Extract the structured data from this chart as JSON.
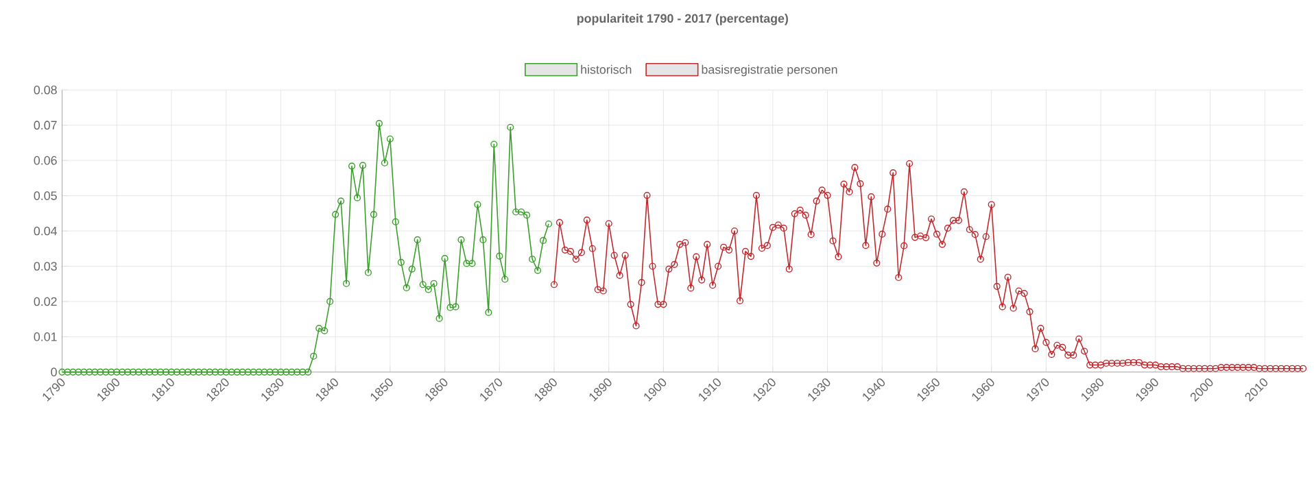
{
  "chart_data": {
    "type": "line",
    "title": "populariteit 1790 - 2017 (percentage)",
    "xlim": [
      1790,
      2017
    ],
    "xticks": [
      1790,
      1800,
      1810,
      1820,
      1830,
      1840,
      1850,
      1860,
      1870,
      1880,
      1890,
      1900,
      1910,
      1920,
      1930,
      1940,
      1950,
      1960,
      1970,
      1980,
      1990,
      2000,
      2010
    ],
    "ylim": [
      0,
      0.08
    ],
    "yticks": [
      0,
      0.01,
      0.02,
      0.03,
      0.04,
      0.05,
      0.06,
      0.07,
      0.08
    ],
    "grid": true,
    "legend": "top",
    "marker": "circle",
    "line_style": "solid",
    "series": [
      {
        "name": "historisch",
        "color": "#3a9e2a",
        "x": [
          1790,
          1791,
          1792,
          1793,
          1794,
          1795,
          1796,
          1797,
          1798,
          1799,
          1800,
          1801,
          1802,
          1803,
          1804,
          1805,
          1806,
          1807,
          1808,
          1809,
          1810,
          1811,
          1812,
          1813,
          1814,
          1815,
          1816,
          1817,
          1818,
          1819,
          1820,
          1821,
          1822,
          1823,
          1824,
          1825,
          1826,
          1827,
          1828,
          1829,
          1830,
          1831,
          1832,
          1833,
          1834,
          1835,
          1836,
          1837,
          1838,
          1839,
          1840,
          1841,
          1842,
          1843,
          1844,
          1845,
          1846,
          1847,
          1848,
          1849,
          1850,
          1851,
          1852,
          1853,
          1854,
          1855,
          1856,
          1857,
          1858,
          1859,
          1860,
          1861,
          1862,
          1863,
          1864,
          1865,
          1866,
          1867,
          1868,
          1869,
          1870,
          1871,
          1872,
          1873,
          1874,
          1875,
          1876,
          1877,
          1878,
          1879
        ],
        "values": [
          0,
          0,
          0,
          0,
          0,
          0,
          0,
          0,
          0,
          0,
          0,
          0,
          0,
          0,
          0,
          0,
          0,
          0,
          0,
          0,
          0,
          0,
          0,
          0,
          0,
          0,
          0,
          0,
          0,
          0,
          0,
          0,
          0,
          0,
          0,
          0,
          0,
          0,
          0,
          0,
          0,
          0,
          0,
          0,
          0,
          0,
          0.0045,
          0.0124,
          0.0117,
          0.02,
          0.0447,
          0.0485,
          0.0251,
          0.0584,
          0.0494,
          0.0586,
          0.0282,
          0.0447,
          0.0705,
          0.0593,
          0.0661,
          0.0426,
          0.0311,
          0.0239,
          0.0292,
          0.0375,
          0.0248,
          0.0234,
          0.0251,
          0.0152,
          0.0322,
          0.0183,
          0.0185,
          0.0375,
          0.0308,
          0.0308,
          0.0475,
          0.0375,
          0.0169,
          0.0646,
          0.0329,
          0.0263,
          0.0694,
          0.0454,
          0.0454,
          0.0445,
          0.032,
          0.0288,
          0.0373,
          0.042
        ]
      },
      {
        "name": "basisregistratie personen",
        "color": "#c0282d",
        "x": [
          1880,
          1881,
          1882,
          1883,
          1884,
          1885,
          1886,
          1887,
          1888,
          1889,
          1890,
          1891,
          1892,
          1893,
          1894,
          1895,
          1896,
          1897,
          1898,
          1899,
          1900,
          1901,
          1902,
          1903,
          1904,
          1905,
          1906,
          1907,
          1908,
          1909,
          1910,
          1911,
          1912,
          1913,
          1914,
          1915,
          1916,
          1917,
          1918,
          1919,
          1920,
          1921,
          1922,
          1923,
          1924,
          1925,
          1926,
          1927,
          1928,
          1929,
          1930,
          1931,
          1932,
          1933,
          1934,
          1935,
          1936,
          1937,
          1938,
          1939,
          1940,
          1941,
          1942,
          1943,
          1944,
          1945,
          1946,
          1947,
          1948,
          1949,
          1950,
          1951,
          1952,
          1953,
          1954,
          1955,
          1956,
          1957,
          1958,
          1959,
          1960,
          1961,
          1962,
          1963,
          1964,
          1965,
          1966,
          1967,
          1968,
          1969,
          1970,
          1971,
          1972,
          1973,
          1974,
          1975,
          1976,
          1977,
          1978,
          1979,
          1980,
          1981,
          1982,
          1983,
          1984,
          1985,
          1986,
          1987,
          1988,
          1989,
          1990,
          1991,
          1992,
          1993,
          1994,
          1995,
          1996,
          1997,
          1998,
          1999,
          2000,
          2001,
          2002,
          2003,
          2004,
          2005,
          2006,
          2007,
          2008,
          2009,
          2010,
          2011,
          2012,
          2013,
          2014,
          2015,
          2016,
          2017
        ],
        "values": [
          0.0248,
          0.0424,
          0.0346,
          0.0342,
          0.032,
          0.0339,
          0.0431,
          0.035,
          0.0234,
          0.023,
          0.0421,
          0.0331,
          0.0274,
          0.0331,
          0.0192,
          0.0131,
          0.0254,
          0.0501,
          0.03,
          0.0192,
          0.0192,
          0.0292,
          0.0305,
          0.0362,
          0.0367,
          0.0238,
          0.0327,
          0.0261,
          0.0362,
          0.0246,
          0.03,
          0.0354,
          0.0346,
          0.04,
          0.0202,
          0.0342,
          0.0328,
          0.0501,
          0.0351,
          0.0359,
          0.041,
          0.0417,
          0.0408,
          0.0292,
          0.0449,
          0.0459,
          0.0445,
          0.039,
          0.0485,
          0.0516,
          0.0501,
          0.0372,
          0.0327,
          0.0533,
          0.0511,
          0.058,
          0.0534,
          0.0359,
          0.0497,
          0.0309,
          0.0391,
          0.0462,
          0.0565,
          0.0268,
          0.0358,
          0.0591,
          0.0382,
          0.0386,
          0.0381,
          0.0434,
          0.0391,
          0.0362,
          0.0408,
          0.043,
          0.043,
          0.0511,
          0.0404,
          0.039,
          0.032,
          0.0384,
          0.0475,
          0.0243,
          0.0185,
          0.0269,
          0.0181,
          0.023,
          0.0223,
          0.0171,
          0.0066,
          0.0124,
          0.0084,
          0.005,
          0.0076,
          0.007,
          0.0048,
          0.0048,
          0.0094,
          0.0059,
          0.002,
          0.002,
          0.002,
          0.0025,
          0.0025,
          0.0025,
          0.0025,
          0.0027,
          0.0027,
          0.0027,
          0.002,
          0.002,
          0.002,
          0.0015,
          0.0015,
          0.0015,
          0.0015,
          0.001,
          0.001,
          0.001,
          0.001,
          0.001,
          0.001,
          0.001,
          0.0013,
          0.0013,
          0.0013,
          0.0013,
          0.0013,
          0.0013,
          0.0013,
          0.001,
          0.001,
          0.001,
          0.001,
          0.001,
          0.001,
          0.001,
          0.001,
          0.001
        ]
      }
    ]
  }
}
